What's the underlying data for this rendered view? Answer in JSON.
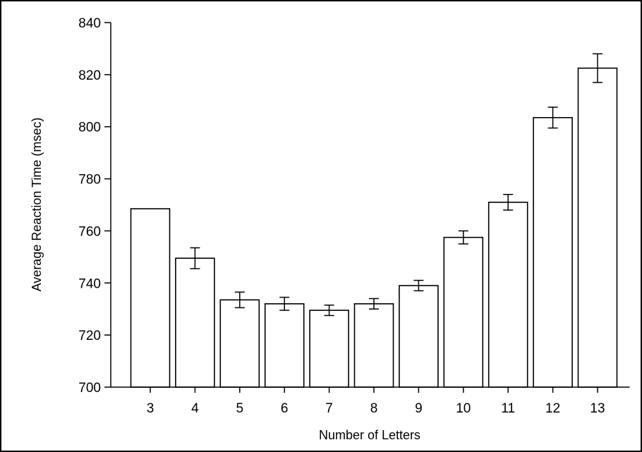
{
  "chart_data": {
    "type": "bar",
    "xlabel": "Number of Letters",
    "ylabel": "Average Reaction Time (msec)",
    "categories": [
      "3",
      "4",
      "5",
      "6",
      "7",
      "8",
      "9",
      "10",
      "11",
      "12",
      "13"
    ],
    "values": [
      768.5,
      749.5,
      733.5,
      732,
      729.5,
      732,
      739,
      757.5,
      771,
      803.5,
      822.5
    ],
    "error": [
      null,
      4,
      3,
      2.5,
      2,
      2,
      2,
      2.5,
      3,
      4,
      5.5
    ],
    "ylim": [
      700,
      840
    ],
    "yticks": [
      700,
      720,
      740,
      760,
      780,
      800,
      820,
      840
    ],
    "grid": false,
    "legend": "none",
    "bar_fill": "#ffffff",
    "bar_stroke": "#000000"
  }
}
